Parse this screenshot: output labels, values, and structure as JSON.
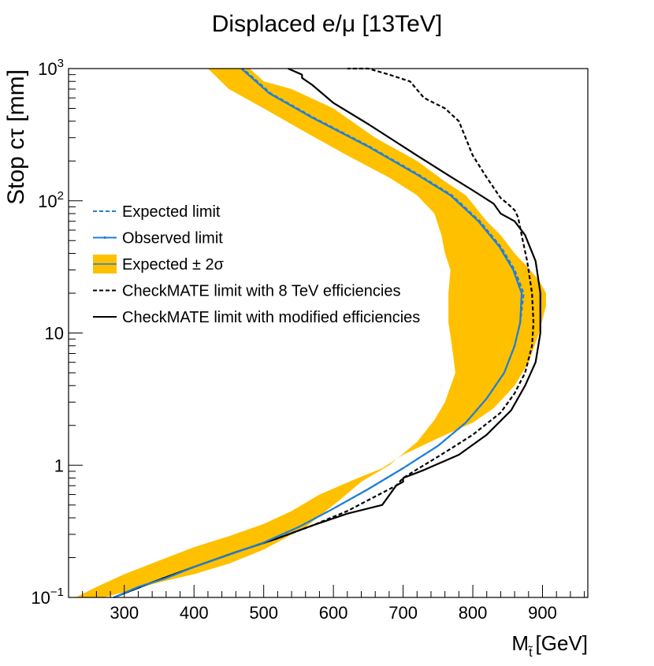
{
  "chart_data": {
    "type": "line",
    "title": "Displaced e/μ [13TeV]",
    "xlabel": "M",
    "xlabel_sub": "t̃",
    "xlabel_unit": "[GeV]",
    "ylabel": "Stop cτ [mm]",
    "xlim": [
      220,
      965
    ],
    "ylim": [
      0.1,
      1000
    ],
    "yscale": "log",
    "x_tick_labels": [
      "300",
      "400",
      "500",
      "600",
      "700",
      "800",
      "900"
    ],
    "y_tick_labels": [
      {
        "base": "10",
        "exp": "−1",
        "value": 0.1
      },
      {
        "base": "1",
        "exp": "",
        "value": 1
      },
      {
        "base": "10",
        "exp": "",
        "value": 10
      },
      {
        "base": "10",
        "exp": "2",
        "value": 100
      },
      {
        "base": "10",
        "exp": "3",
        "value": 1000
      }
    ],
    "legend": {
      "position": "center-left",
      "entries": [
        "Expected limit",
        "Observed limit",
        "Expected ± 2σ",
        "CheckMATE limit with 8 TeV efficiencies",
        "CheckMATE limit with modified efficiencies"
      ]
    },
    "band": {
      "name": "Expected ± 2σ",
      "color": "#ffc000",
      "outer": [
        [
          230,
          0.1
        ],
        [
          260,
          0.12
        ],
        [
          300,
          0.15
        ],
        [
          350,
          0.19
        ],
        [
          400,
          0.24
        ],
        [
          450,
          0.29
        ],
        [
          500,
          0.36
        ],
        [
          540,
          0.45
        ],
        [
          580,
          0.6
        ],
        [
          630,
          0.78
        ],
        [
          670,
          0.95
        ],
        [
          700,
          1.2
        ],
        [
          750,
          1.6
        ],
        [
          800,
          2.1
        ],
        [
          830,
          2.7
        ],
        [
          860,
          4
        ],
        [
          880,
          6
        ],
        [
          895,
          10
        ],
        [
          905,
          16
        ],
        [
          905,
          20
        ],
        [
          895,
          25
        ],
        [
          880,
          31
        ],
        [
          860,
          40
        ],
        [
          840,
          55
        ],
        [
          820,
          70
        ],
        [
          790,
          110
        ],
        [
          760,
          140
        ],
        [
          720,
          200
        ],
        [
          660,
          300
        ],
        [
          600,
          500
        ],
        [
          540,
          700
        ],
        [
          500,
          800
        ],
        [
          480,
          1000
        ],
        [
          470,
          1000
        ]
      ],
      "inner": [
        [
          270,
          0.1
        ],
        [
          300,
          0.11
        ],
        [
          350,
          0.13
        ],
        [
          400,
          0.15
        ],
        [
          450,
          0.18
        ],
        [
          500,
          0.23
        ],
        [
          560,
          0.34
        ],
        [
          610,
          0.55
        ],
        [
          640,
          0.75
        ],
        [
          680,
          1.0
        ],
        [
          720,
          1.5
        ],
        [
          745,
          2.2
        ],
        [
          760,
          3.0
        ],
        [
          775,
          5.0
        ],
        [
          770,
          8.0
        ],
        [
          765,
          12
        ],
        [
          765,
          20
        ],
        [
          768,
          30
        ],
        [
          760,
          40
        ],
        [
          755,
          55
        ],
        [
          745,
          80
        ],
        [
          720,
          110
        ],
        [
          680,
          150
        ],
        [
          620,
          220
        ],
        [
          560,
          330
        ],
        [
          500,
          500
        ],
        [
          450,
          700
        ],
        [
          420,
          1000
        ],
        [
          440,
          1000
        ]
      ]
    },
    "series": [
      {
        "name": "Expected limit",
        "color": "#1f7fd6",
        "style": "dashed",
        "points": [
          [
            285,
            0.1
          ],
          [
            320,
            0.12
          ],
          [
            360,
            0.14
          ],
          [
            400,
            0.17
          ],
          [
            450,
            0.21
          ],
          [
            500,
            0.26
          ],
          [
            550,
            0.34
          ],
          [
            600,
            0.47
          ],
          [
            650,
            0.66
          ],
          [
            700,
            0.95
          ],
          [
            750,
            1.4
          ],
          [
            790,
            2.1
          ],
          [
            820,
            3.2
          ],
          [
            845,
            5
          ],
          [
            860,
            8
          ],
          [
            868,
            12
          ],
          [
            873,
            20
          ],
          [
            860,
            30
          ],
          [
            840,
            45
          ],
          [
            810,
            70
          ],
          [
            770,
            110
          ],
          [
            720,
            160
          ],
          [
            650,
            260
          ],
          [
            570,
            430
          ],
          [
            510,
            650
          ],
          [
            470,
            1000
          ]
        ]
      },
      {
        "name": "Observed limit",
        "color": "#1f7fd6",
        "style": "solid",
        "points": [
          [
            285,
            0.1
          ],
          [
            320,
            0.12
          ],
          [
            360,
            0.14
          ],
          [
            400,
            0.17
          ],
          [
            450,
            0.21
          ],
          [
            500,
            0.26
          ],
          [
            550,
            0.34
          ],
          [
            600,
            0.47
          ],
          [
            650,
            0.66
          ],
          [
            700,
            0.95
          ],
          [
            750,
            1.4
          ],
          [
            790,
            2.1
          ],
          [
            820,
            3.2
          ],
          [
            845,
            5
          ],
          [
            860,
            8
          ],
          [
            868,
            12
          ],
          [
            870,
            20
          ],
          [
            858,
            30
          ],
          [
            838,
            45
          ],
          [
            808,
            70
          ],
          [
            768,
            110
          ],
          [
            718,
            160
          ],
          [
            648,
            260
          ],
          [
            568,
            430
          ],
          [
            508,
            650
          ],
          [
            468,
            1000
          ]
        ]
      },
      {
        "name": "CheckMATE limit with 8 TeV efficiencies",
        "color": "#000000",
        "style": "dashed",
        "points": [
          [
            285,
            0.1
          ],
          [
            340,
            0.13
          ],
          [
            400,
            0.17
          ],
          [
            460,
            0.22
          ],
          [
            520,
            0.28
          ],
          [
            570,
            0.35
          ],
          [
            620,
            0.45
          ],
          [
            660,
            0.58
          ],
          [
            690,
            0.7
          ],
          [
            700,
            0.8
          ],
          [
            720,
            0.93
          ],
          [
            760,
            1.25
          ],
          [
            800,
            1.7
          ],
          [
            840,
            2.5
          ],
          [
            860,
            3.5
          ],
          [
            875,
            5
          ],
          [
            885,
            8
          ],
          [
            887,
            12
          ],
          [
            885,
            20
          ],
          [
            878,
            35
          ],
          [
            870,
            55
          ],
          [
            865,
            75
          ],
          [
            860,
            85
          ],
          [
            850,
            95
          ],
          [
            840,
            105
          ],
          [
            820,
            150
          ],
          [
            800,
            220
          ],
          [
            780,
            400
          ],
          [
            760,
            500
          ],
          [
            730,
            600
          ],
          [
            710,
            800
          ],
          [
            680,
            900
          ],
          [
            650,
            1000
          ],
          [
            620,
            1000
          ]
        ]
      },
      {
        "name": "CheckMATE limit with modified efficiencies",
        "color": "#000000",
        "style": "solid",
        "points": [
          [
            285,
            0.1
          ],
          [
            340,
            0.13
          ],
          [
            400,
            0.17
          ],
          [
            460,
            0.22
          ],
          [
            520,
            0.28
          ],
          [
            570,
            0.35
          ],
          [
            620,
            0.43
          ],
          [
            670,
            0.5
          ],
          [
            690,
            0.7
          ],
          [
            700,
            0.75
          ],
          [
            700,
            0.8
          ],
          [
            730,
            0.92
          ],
          [
            780,
            1.2
          ],
          [
            820,
            1.7
          ],
          [
            855,
            2.6
          ],
          [
            875,
            4
          ],
          [
            890,
            6
          ],
          [
            897,
            10
          ],
          [
            897,
            20
          ],
          [
            890,
            35
          ],
          [
            875,
            55
          ],
          [
            860,
            70
          ],
          [
            840,
            80
          ],
          [
            830,
            95
          ],
          [
            800,
            120
          ],
          [
            770,
            150
          ],
          [
            720,
            220
          ],
          [
            650,
            380
          ],
          [
            600,
            550
          ],
          [
            570,
            750
          ],
          [
            555,
            850
          ],
          [
            555,
            900
          ],
          [
            535,
            1000
          ]
        ]
      }
    ]
  }
}
